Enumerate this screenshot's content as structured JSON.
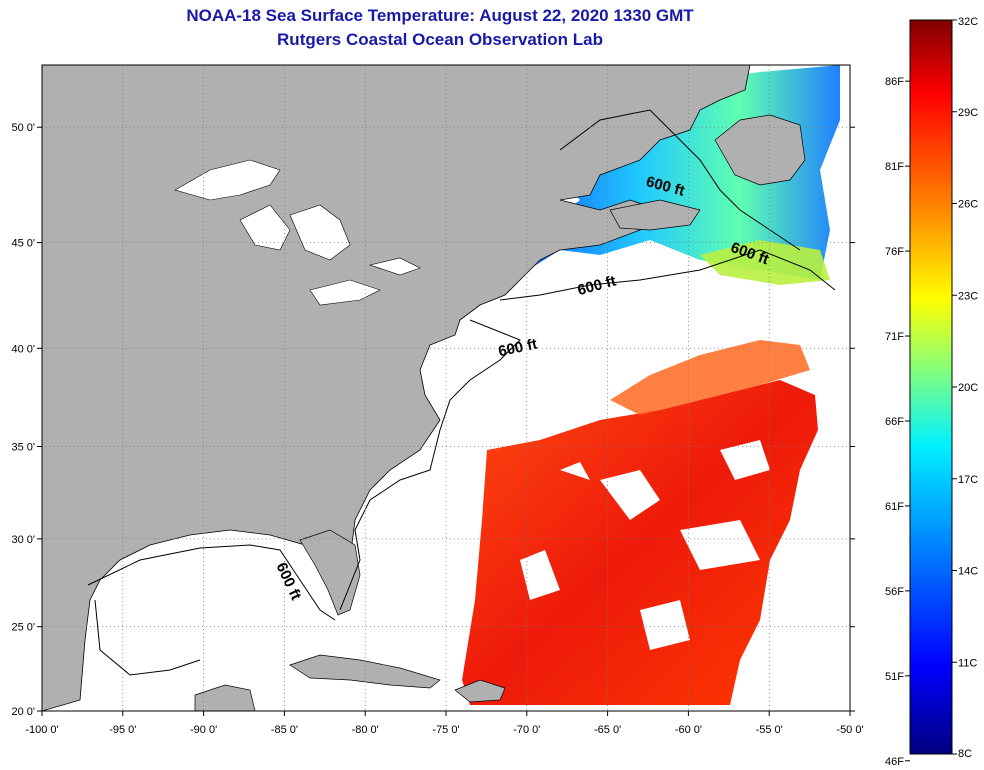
{
  "title": {
    "line1": "NOAA-18 Sea Surface Temperature:  August 22, 2020 1330 GMT",
    "line2": "Rutgers Coastal Ocean Observation Lab"
  },
  "map": {
    "lon_range": [
      -100,
      -50
    ],
    "lat_range": [
      20,
      52.5
    ],
    "lon_ticks": [
      -100,
      -95,
      -90,
      -85,
      -80,
      -75,
      -70,
      -65,
      -60,
      -55,
      -50
    ],
    "lon_labels": [
      "-100 0'",
      "-95 0'",
      "-90 0'",
      "-85 0'",
      "-80 0'",
      "-75 0'",
      "-70 0'",
      "-65 0'",
      "-60 0'",
      "-55 0'",
      "-50 0'"
    ],
    "lat_ticks": [
      20,
      25,
      30,
      35,
      40,
      45,
      50
    ],
    "lat_labels": [
      "20 0'",
      "25 0'",
      "30 0'",
      "35 0'",
      "40 0'",
      "45 0'",
      "50 0'"
    ],
    "contour_labels": [
      {
        "text": "600 ft",
        "lon": -61.5,
        "lat": 47.3,
        "angle": 15
      },
      {
        "text": "600 ft",
        "lon": -56.3,
        "lat": 44.3,
        "angle": 20
      },
      {
        "text": "600 ft",
        "lon": -65.6,
        "lat": 42.8,
        "angle": -15
      },
      {
        "text": "600 ft",
        "lon": -70.5,
        "lat": 39.8,
        "angle": -12
      },
      {
        "text": "600 ft",
        "lon": -85.0,
        "lat": 27.5,
        "angle": 65
      }
    ],
    "colors": {
      "land": "#b0b0b0",
      "ocean": "#ffffff",
      "grid": "#7a7a7a"
    }
  },
  "colorbar": {
    "min_c": 8,
    "max_c": 32,
    "celsius_labels": [
      "32C",
      "29C",
      "26C",
      "23C",
      "20C",
      "17C",
      "14C",
      "11C",
      "8C"
    ],
    "fahrenheit_labels": [
      "86F",
      "81F",
      "76F",
      "71F",
      "66F",
      "61F",
      "56F",
      "51F",
      "46F"
    ],
    "fahrenheit_values": [
      86,
      81,
      76,
      71,
      66,
      61,
      56,
      51,
      46
    ],
    "colors": [
      "#000080",
      "#0000ff",
      "#0080ff",
      "#00ffff",
      "#80ff80",
      "#ffff00",
      "#ff8000",
      "#ff0000",
      "#800000"
    ]
  }
}
